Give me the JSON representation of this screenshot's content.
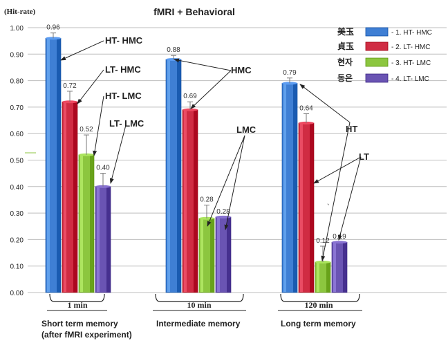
{
  "chart_data": {
    "type": "bar",
    "title": "fMRI + Behavioral",
    "ylabel": "(Hit-rate)",
    "ylim": [
      0,
      1.0
    ],
    "yticks": [
      "0.00",
      "0.10",
      "0.20",
      "0.30",
      "0.40",
      "0.50",
      "0.60",
      "0.70",
      "0.80",
      "0.90",
      "1.00"
    ],
    "grid": true,
    "legend_position": "top-right",
    "categories": [
      "1 min",
      "10 min",
      "120 min"
    ],
    "category_sublabels": [
      "Short term memory\n(after fMRI experiment)",
      "Intermediate  memory",
      "Long term  memory"
    ],
    "series": [
      {
        "name": "1.  HT- HMC",
        "legend_prefix": "美玉",
        "color": "#3F7FD4",
        "values": [
          0.96,
          0.88,
          0.79
        ],
        "labels": [
          "0.96",
          "0.88",
          "0.79"
        ],
        "errors": [
          0.02,
          0.015,
          0.02
        ]
      },
      {
        "name": "2.  LT- HMC",
        "legend_prefix": "貞玉",
        "color": "#D02C43",
        "values": [
          0.72,
          0.69,
          0.64
        ],
        "labels": [
          "0.72",
          "0.69",
          "0.64"
        ],
        "errors": [
          0.04,
          0.03,
          0.035
        ]
      },
      {
        "name": "3.  HT- LMC",
        "legend_prefix": "현자",
        "color": "#8CC63F",
        "values": [
          0.52,
          0.28,
          0.115
        ],
        "labels": [
          "0.52",
          "0.28",
          "0.12"
        ],
        "errors": [
          0.075,
          0.05,
          0.06
        ]
      },
      {
        "name": "4.  LT- LMC",
        "legend_prefix": "동은",
        "color": "#6A54B3",
        "values": [
          0.4,
          0.285,
          0.19
        ],
        "labels": [
          "0.40",
          "0.28",
          "0.19"
        ],
        "errors": [
          0.05,
          0.0,
          0.0
        ]
      }
    ],
    "annotations": {
      "group1": [
        "HT- HMC",
        "LT- HMC",
        "HT- LMC",
        "LT- LMC"
      ],
      "group2": [
        "HMC",
        "LMC"
      ],
      "group3": [
        "HT",
        "LT",
        "`"
      ]
    }
  }
}
